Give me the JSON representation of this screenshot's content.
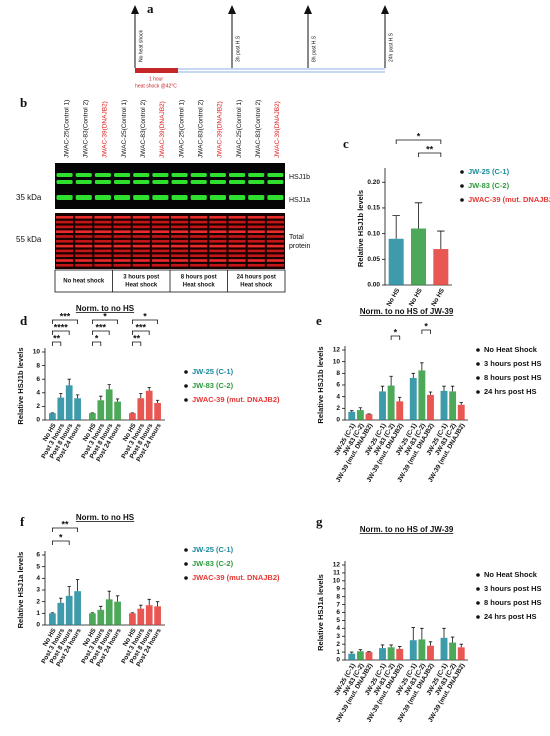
{
  "timeline": {
    "label": "a",
    "events": [
      "No heat shock",
      "3h post H.S",
      "8h post H.S",
      "24h post H.S"
    ],
    "heat_shock": [
      "1 hour",
      "heat shock @42°C"
    ]
  },
  "blot": {
    "label": "b",
    "lanes": [
      {
        "label": "JWAC-25(Control 1)",
        "color": "#111111"
      },
      {
        "label": "JWAC-83(Control 2)",
        "color": "#111111"
      },
      {
        "label": "JWAC-39(DNAJB2)",
        "color": "#e02020"
      },
      {
        "label": "JWAC-25(Control 1)",
        "color": "#111111"
      },
      {
        "label": "JWAC-83(Control 2)",
        "color": "#111111"
      },
      {
        "label": "JWAC-39(DNAJB2)",
        "color": "#e02020"
      },
      {
        "label": "JWAC-25(Control 1)",
        "color": "#111111"
      },
      {
        "label": "JWAC-83(Control 2)",
        "color": "#111111"
      },
      {
        "label": "JWAC-39(DNAJB2)",
        "color": "#e02020"
      },
      {
        "label": "JWAC-25(Control 1)",
        "color": "#111111"
      },
      {
        "label": "JWAC-83(Control 2)",
        "color": "#111111"
      },
      {
        "label": "JWAC-39(DNAJB2)",
        "color": "#e02020"
      }
    ],
    "markers": [
      "35 kDa",
      "55 kDa"
    ],
    "bands": [
      "HSJ1b",
      "HSJ1a"
    ],
    "total": [
      "Total",
      "protein"
    ],
    "groups": [
      [
        "No heat shock"
      ],
      [
        "3 hours post",
        "Heat shock"
      ],
      [
        "8 hours post",
        "Heat shock"
      ],
      [
        "24 hours post",
        "Heat shock"
      ]
    ]
  },
  "chart_data": [
    {
      "type": "bar",
      "label": "c",
      "ylabel": "Relative HSJ1b levels",
      "group_by": "series",
      "categories": [
        "No HS"
      ],
      "series": [
        {
          "name": "JW-25 (C-1)",
          "color": "#1b8a9c",
          "values": [
            0.09
          ],
          "errors": [
            0.045
          ]
        },
        {
          "name": "JW-83 (C-2)",
          "color": "#2e9a3c",
          "values": [
            0.11
          ],
          "errors": [
            0.05
          ]
        },
        {
          "name": "JWAC-39 (mut. DNAJB2)",
          "color": "#e53935",
          "values": [
            0.07
          ],
          "errors": [
            0.035
          ]
        }
      ],
      "ylim": [
        0,
        0.22
      ],
      "yticks": [
        {
          "value": 0,
          "label": "0.00"
        },
        0.05,
        {
          "value": 0.1,
          "label": "0.10"
        },
        0.15,
        {
          "value": 0.2,
          "label": "0.20"
        }
      ],
      "annotations": [
        "*",
        "**"
      ]
    },
    {
      "type": "bar",
      "label": "d",
      "title": "Norm. to no HS",
      "ylabel": "Relative HSJ1b levels",
      "group_by": "series",
      "categories": [
        "No HS",
        "Post 3 hours",
        "Post 8 hours",
        "Post 24 hours"
      ],
      "series": [
        {
          "name": "JW-25 (C-1)",
          "color": "#1b8a9c",
          "values": [
            1,
            3.3,
            5.1,
            3.2
          ],
          "errors": [
            0.05,
            0.6,
            0.9,
            0.5
          ]
        },
        {
          "name": "JW-83 (C-2)",
          "color": "#2e9a3c",
          "values": [
            1,
            2.9,
            4.5,
            2.7
          ],
          "errors": [
            0.05,
            0.6,
            0.7,
            0.4
          ]
        },
        {
          "name": "JWAC-39 (mut. DNAJB2)",
          "color": "#e53935",
          "values": [
            1,
            3.2,
            4.3,
            2.5
          ],
          "errors": [
            0.05,
            0.7,
            0.5,
            0.4
          ]
        }
      ],
      "ylim": [
        0,
        10
      ],
      "yticks": [
        0,
        2,
        4,
        6,
        8,
        10
      ],
      "annotations": [
        "***",
        "****",
        "**",
        "*",
        "***",
        "*",
        "*",
        "***",
        "**"
      ]
    },
    {
      "type": "bar",
      "label": "e",
      "title": "Norm. to no HS of JW-39",
      "ylabel": "Relative HSJ1b levels",
      "group_by": "categories",
      "categories": [
        "No Heat Shock",
        "3 hours post HS",
        "8 hours post HS",
        "24 hrs post HS"
      ],
      "series": [
        {
          "name": "JW-25 (C-1)",
          "color": "#1b8a9c",
          "values": [
            1.4,
            4.9,
            7.2,
            5.0
          ],
          "errors": [
            0.2,
            0.9,
            0.8,
            0.8
          ]
        },
        {
          "name": "JW-83 (C-2)",
          "color": "#2e9a3c",
          "values": [
            1.7,
            5.9,
            8.5,
            4.9
          ],
          "errors": [
            0.4,
            1.6,
            1.3,
            0.9
          ]
        },
        {
          "name": "JW-39 (mut. DNAJB2)",
          "color": "#e53935",
          "values": [
            1.0,
            3.2,
            4.3,
            2.6
          ],
          "errors": [
            0.05,
            0.7,
            0.5,
            0.4
          ]
        }
      ],
      "ylim": [
        0,
        12
      ],
      "yticks": [
        0,
        2,
        4,
        6,
        8,
        10,
        12
      ],
      "annotations": [
        "*",
        "*"
      ]
    },
    {
      "type": "bar",
      "label": "f",
      "title": "Norm. to no HS",
      "ylabel": "Relative HSJ1a levels",
      "group_by": "series",
      "categories": [
        "No HS",
        "Post 3 hours",
        "Post 8 hours",
        "Post 24 hours"
      ],
      "series": [
        {
          "name": "JW-25 (C-1)",
          "color": "#1b8a9c",
          "values": [
            1,
            1.9,
            2.5,
            2.9
          ],
          "errors": [
            0.05,
            0.4,
            0.8,
            1.0
          ]
        },
        {
          "name": "JW-83 (C-2)",
          "color": "#2e9a3c",
          "values": [
            1,
            1.3,
            2.2,
            2.0
          ],
          "errors": [
            0.05,
            0.3,
            0.7,
            0.5
          ]
        },
        {
          "name": "JWAC-39 (mut. DNAJB2)",
          "color": "#e53935",
          "values": [
            1,
            1.4,
            1.7,
            1.6
          ],
          "errors": [
            0.05,
            0.3,
            0.5,
            0.4
          ]
        }
      ],
      "ylim": [
        0,
        6
      ],
      "yticks": [
        0,
        1,
        2,
        3,
        4,
        5,
        6
      ],
      "annotations": [
        "**",
        "*"
      ]
    },
    {
      "type": "bar",
      "label": "g",
      "title": "Norm. to no HS of JW-39",
      "ylabel": "Relative HSJ1a levels",
      "group_by": "categories",
      "categories": [
        "No Heat Shock",
        "3 hours post HS",
        "8 hours post HS",
        "24 hrs post HS"
      ],
      "series": [
        {
          "name": "JW-25 (C-1)",
          "color": "#1b8a9c",
          "values": [
            0.8,
            1.5,
            2.5,
            2.8
          ],
          "errors": [
            0.2,
            0.4,
            1.6,
            1.2
          ]
        },
        {
          "name": "JW-83 (C-2)",
          "color": "#2e9a3c",
          "values": [
            1.1,
            1.6,
            2.6,
            2.2
          ],
          "errors": [
            0.2,
            0.3,
            1.4,
            0.7
          ]
        },
        {
          "name": "JW-39 (mut. DNAJB2)",
          "color": "#e53935",
          "values": [
            1.0,
            1.4,
            1.8,
            1.6
          ],
          "errors": [
            0.05,
            0.3,
            0.5,
            0.4
          ]
        }
      ],
      "ylim": [
        0,
        12
      ],
      "yticks": [
        0,
        1,
        2,
        3,
        4,
        5,
        6,
        7,
        8,
        9,
        10,
        11,
        12
      ],
      "annotations": []
    }
  ]
}
